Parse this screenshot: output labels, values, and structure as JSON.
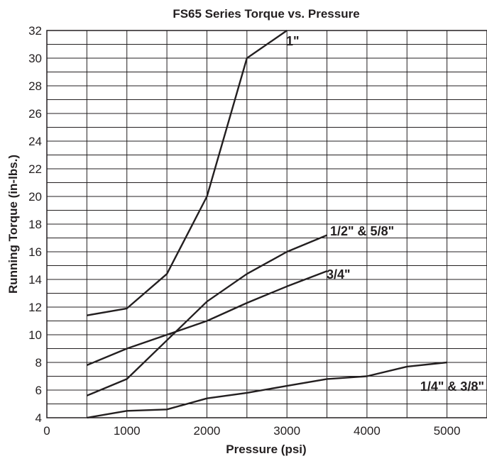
{
  "chart_data": {
    "type": "line",
    "title": "FS65 Series Torque vs. Pressure",
    "xlabel": "Pressure (psi)",
    "ylabel": "Running Torque (in-lbs.)",
    "xlim": [
      0,
      5500
    ],
    "ylim": [
      4,
      32
    ],
    "x_ticks": [
      "0",
      "1000",
      "2000",
      "3000",
      "4000",
      "5000"
    ],
    "y_ticks": [
      "4",
      "6",
      "8",
      "10",
      "12",
      "14",
      "16",
      "18",
      "20",
      "22",
      "24",
      "26",
      "28",
      "30",
      "32"
    ],
    "grid": true,
    "series": [
      {
        "name": "1\"",
        "x": [
          500,
          1000,
          1500,
          2000,
          2500,
          3000
        ],
        "y": [
          11.4,
          11.9,
          14.4,
          20.0,
          30.0,
          32.0
        ]
      },
      {
        "name": "3/4\"",
        "x": [
          500,
          1000,
          1500,
          2000,
          2500,
          3000,
          3500
        ],
        "y": [
          7.8,
          9.0,
          10.0,
          11.0,
          12.3,
          13.5,
          14.6
        ]
      },
      {
        "name": "1/2\" & 5/8\"",
        "x": [
          500,
          1000,
          1500,
          2000,
          2500,
          3000,
          3500
        ],
        "y": [
          5.6,
          6.8,
          9.6,
          12.4,
          14.4,
          16.0,
          17.2
        ]
      },
      {
        "name": "1/4\" & 3/8\"",
        "x": [
          500,
          1000,
          1500,
          2000,
          2500,
          3000,
          3500,
          4000,
          4500,
          5000
        ],
        "y": [
          4.0,
          4.5,
          4.6,
          5.4,
          5.8,
          6.3,
          6.8,
          7.0,
          7.7,
          8.0
        ]
      }
    ]
  }
}
